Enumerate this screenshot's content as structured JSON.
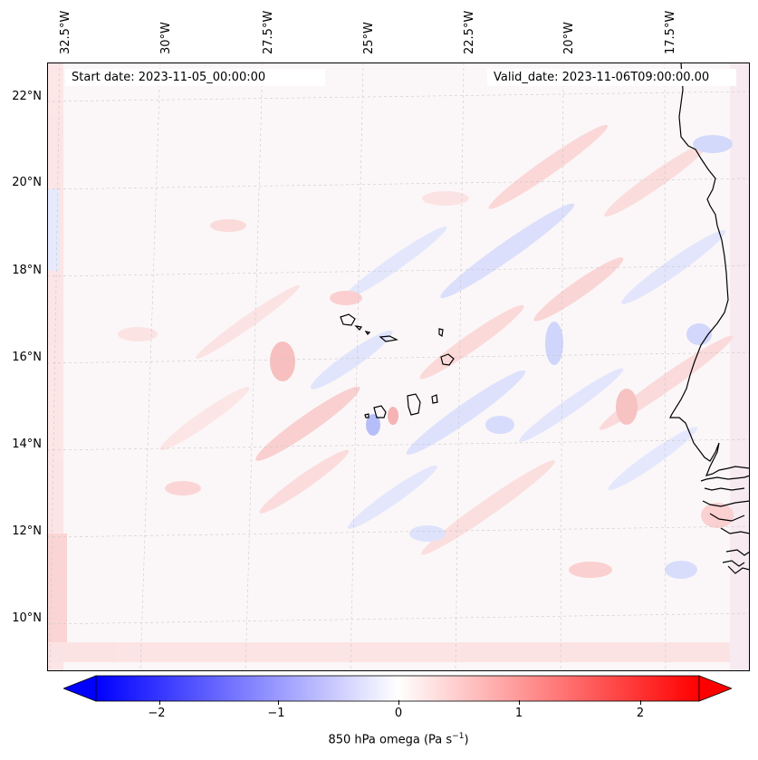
{
  "map": {
    "longitude_labels": [
      "32.5°W",
      "30°W",
      "27.5°W",
      "25°W",
      "22.5°W",
      "20°W",
      "17.5°W"
    ],
    "latitude_labels": [
      "22°N",
      "20°N",
      "18°N",
      "16°N",
      "14°N",
      "12°N",
      "10°N"
    ],
    "start_date_text": "Start date: 2023-11-05_00:00:00",
    "valid_date_text": "Valid_date: 2023-11-06T09:00:00.00",
    "field": "850 hPa omega",
    "coastline_color": "#000000",
    "gridline_style": "dashed light grey"
  },
  "colorbar": {
    "label": "850 hPa omega (Pa s",
    "label_sup": "−1",
    "label_close": ")",
    "ticks": [
      "−2",
      "−1",
      "0",
      "1",
      "2"
    ],
    "range": [
      -2.5,
      2.5
    ],
    "colormap": "bwr",
    "extend": "both",
    "color_min": "#0000ff",
    "color_mid": "#ffffff",
    "color_max": "#ff0000"
  }
}
